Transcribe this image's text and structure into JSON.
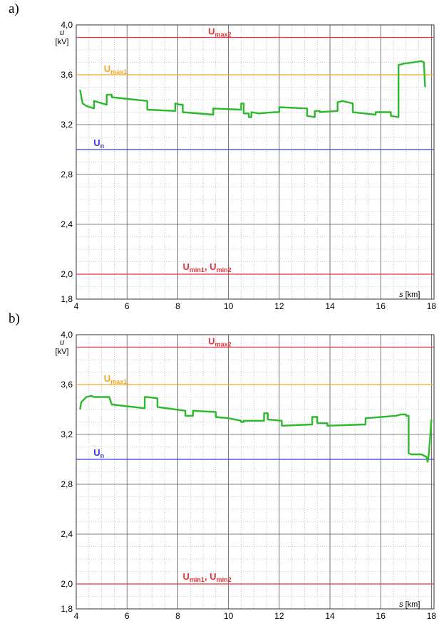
{
  "chart_data": [
    {
      "panel_label": "a)",
      "type": "line",
      "xlabel_var": "s",
      "xlabel_unit": "[km]",
      "ylabel_var": "u",
      "ylabel_unit": "[kV]",
      "xlim": [
        4,
        18.1
      ],
      "ylim": [
        1.8,
        4.0
      ],
      "xticks": [
        4,
        6,
        8,
        10,
        12,
        14,
        16,
        18
      ],
      "yticks": [
        1.8,
        2.0,
        2.4,
        2.8,
        3.2,
        3.6,
        4.0
      ],
      "ytick_labels": [
        "1,8",
        "2,0",
        "2,4",
        "2,8",
        "3,2",
        "3,6",
        "4,0"
      ],
      "grid": true,
      "reference_lines": [
        {
          "key": "umax2",
          "value": 3.9,
          "color": "#e8333a",
          "parts": [
            [
              "U",
              ""
            ],
            [
              "max2",
              "sub"
            ]
          ]
        },
        {
          "key": "umax1",
          "value": 3.6,
          "color": "#f5a623",
          "parts": [
            [
              "U",
              ""
            ],
            [
              "max1",
              "sub"
            ]
          ]
        },
        {
          "key": "un",
          "value": 3.0,
          "color": "#3b3bd6",
          "parts": [
            [
              "U",
              ""
            ],
            [
              "n",
              "sub"
            ]
          ]
        },
        {
          "key": "umin",
          "value": 2.0,
          "color": "#e8333a",
          "parts": [
            [
              "U",
              ""
            ],
            [
              "min1",
              "sub"
            ],
            [
              ", U",
              ""
            ],
            [
              "min2",
              "sub"
            ]
          ]
        }
      ],
      "series": [
        {
          "color": "#2db82d",
          "x": [
            4.15,
            4.25,
            4.4,
            4.7,
            4.7,
            5.2,
            5.2,
            5.4,
            5.4,
            6.8,
            6.8,
            7.9,
            7.9,
            8.1,
            8.2,
            8.2,
            9.4,
            9.4,
            10.5,
            10.5,
            10.6,
            10.6,
            10.8,
            10.8,
            10.9,
            10.9,
            11.2,
            11.8,
            12.0,
            12.0,
            13.1,
            13.1,
            13.4,
            13.4,
            13.6,
            13.6,
            14.3,
            14.3,
            14.5,
            14.9,
            14.9,
            15.8,
            15.8,
            16.4,
            16.4,
            16.7,
            16.7,
            16.75,
            16.9,
            17.3,
            17.6,
            17.7,
            17.75
          ],
          "y": [
            3.48,
            3.37,
            3.35,
            3.33,
            3.39,
            3.36,
            3.44,
            3.44,
            3.42,
            3.39,
            3.32,
            3.31,
            3.37,
            3.36,
            3.36,
            3.3,
            3.28,
            3.33,
            3.32,
            3.37,
            3.37,
            3.29,
            3.29,
            3.26,
            3.26,
            3.3,
            3.29,
            3.3,
            3.3,
            3.34,
            3.33,
            3.27,
            3.26,
            3.31,
            3.31,
            3.3,
            3.31,
            3.38,
            3.39,
            3.37,
            3.3,
            3.28,
            3.3,
            3.3,
            3.27,
            3.26,
            3.68,
            3.68,
            3.69,
            3.7,
            3.71,
            3.7,
            3.5
          ]
        }
      ]
    },
    {
      "panel_label": "b)",
      "type": "line",
      "xlabel_var": "s",
      "xlabel_unit": "[km]",
      "ylabel_var": "u",
      "ylabel_unit": "[kV]",
      "xlim": [
        4,
        18.1
      ],
      "ylim": [
        1.8,
        4.0
      ],
      "xticks": [
        4,
        6,
        8,
        10,
        12,
        14,
        16,
        18
      ],
      "yticks": [
        1.8,
        2.0,
        2.4,
        2.8,
        3.2,
        3.6,
        4.0
      ],
      "ytick_labels": [
        "1,8",
        "2,0",
        "2,4",
        "2,8",
        "3,2",
        "3,6",
        "4,0"
      ],
      "grid": true,
      "reference_lines": [
        {
          "key": "umax2",
          "value": 3.9,
          "color": "#e8333a",
          "parts": [
            [
              "U",
              ""
            ],
            [
              "max2",
              "sub"
            ]
          ]
        },
        {
          "key": "umax1",
          "value": 3.6,
          "color": "#f5a623",
          "parts": [
            [
              "U",
              ""
            ],
            [
              "max1",
              "sub"
            ]
          ]
        },
        {
          "key": "un",
          "value": 3.0,
          "color": "#3b3bd6",
          "parts": [
            [
              "U",
              ""
            ],
            [
              "n",
              "sub"
            ]
          ]
        },
        {
          "key": "umin",
          "value": 2.0,
          "color": "#e8333a",
          "parts": [
            [
              "U",
              ""
            ],
            [
              "min1",
              "sub"
            ],
            [
              ", U",
              ""
            ],
            [
              "min2",
              "sub"
            ]
          ]
        }
      ],
      "series": [
        {
          "color": "#2db82d",
          "x": [
            4.15,
            4.2,
            4.3,
            4.4,
            4.6,
            4.7,
            4.7,
            5.3,
            5.3,
            5.4,
            5.4,
            6.7,
            6.7,
            6.8,
            7.2,
            7.2,
            8.3,
            8.3,
            8.6,
            8.6,
            9.5,
            9.5,
            10.0,
            10.5,
            10.5,
            10.6,
            10.6,
            11.4,
            11.4,
            11.55,
            11.55,
            12.1,
            12.1,
            13.3,
            13.3,
            13.5,
            13.5,
            13.9,
            13.9,
            15.4,
            15.4,
            16.6,
            16.8,
            17.0,
            17.0,
            17.1,
            17.1,
            17.2,
            17.6,
            17.8,
            17.85,
            17.9,
            18.0
          ],
          "y": [
            3.4,
            3.46,
            3.48,
            3.5,
            3.51,
            3.5,
            3.5,
            3.5,
            3.5,
            3.44,
            3.44,
            3.41,
            3.5,
            3.5,
            3.49,
            3.42,
            3.39,
            3.35,
            3.35,
            3.39,
            3.38,
            3.34,
            3.33,
            3.31,
            3.3,
            3.3,
            3.31,
            3.31,
            3.37,
            3.37,
            3.32,
            3.31,
            3.27,
            3.28,
            3.34,
            3.34,
            3.29,
            3.29,
            3.27,
            3.28,
            3.33,
            3.35,
            3.36,
            3.36,
            3.35,
            3.35,
            3.05,
            3.04,
            3.04,
            3.02,
            2.98,
            3.05,
            3.32
          ]
        }
      ]
    }
  ]
}
